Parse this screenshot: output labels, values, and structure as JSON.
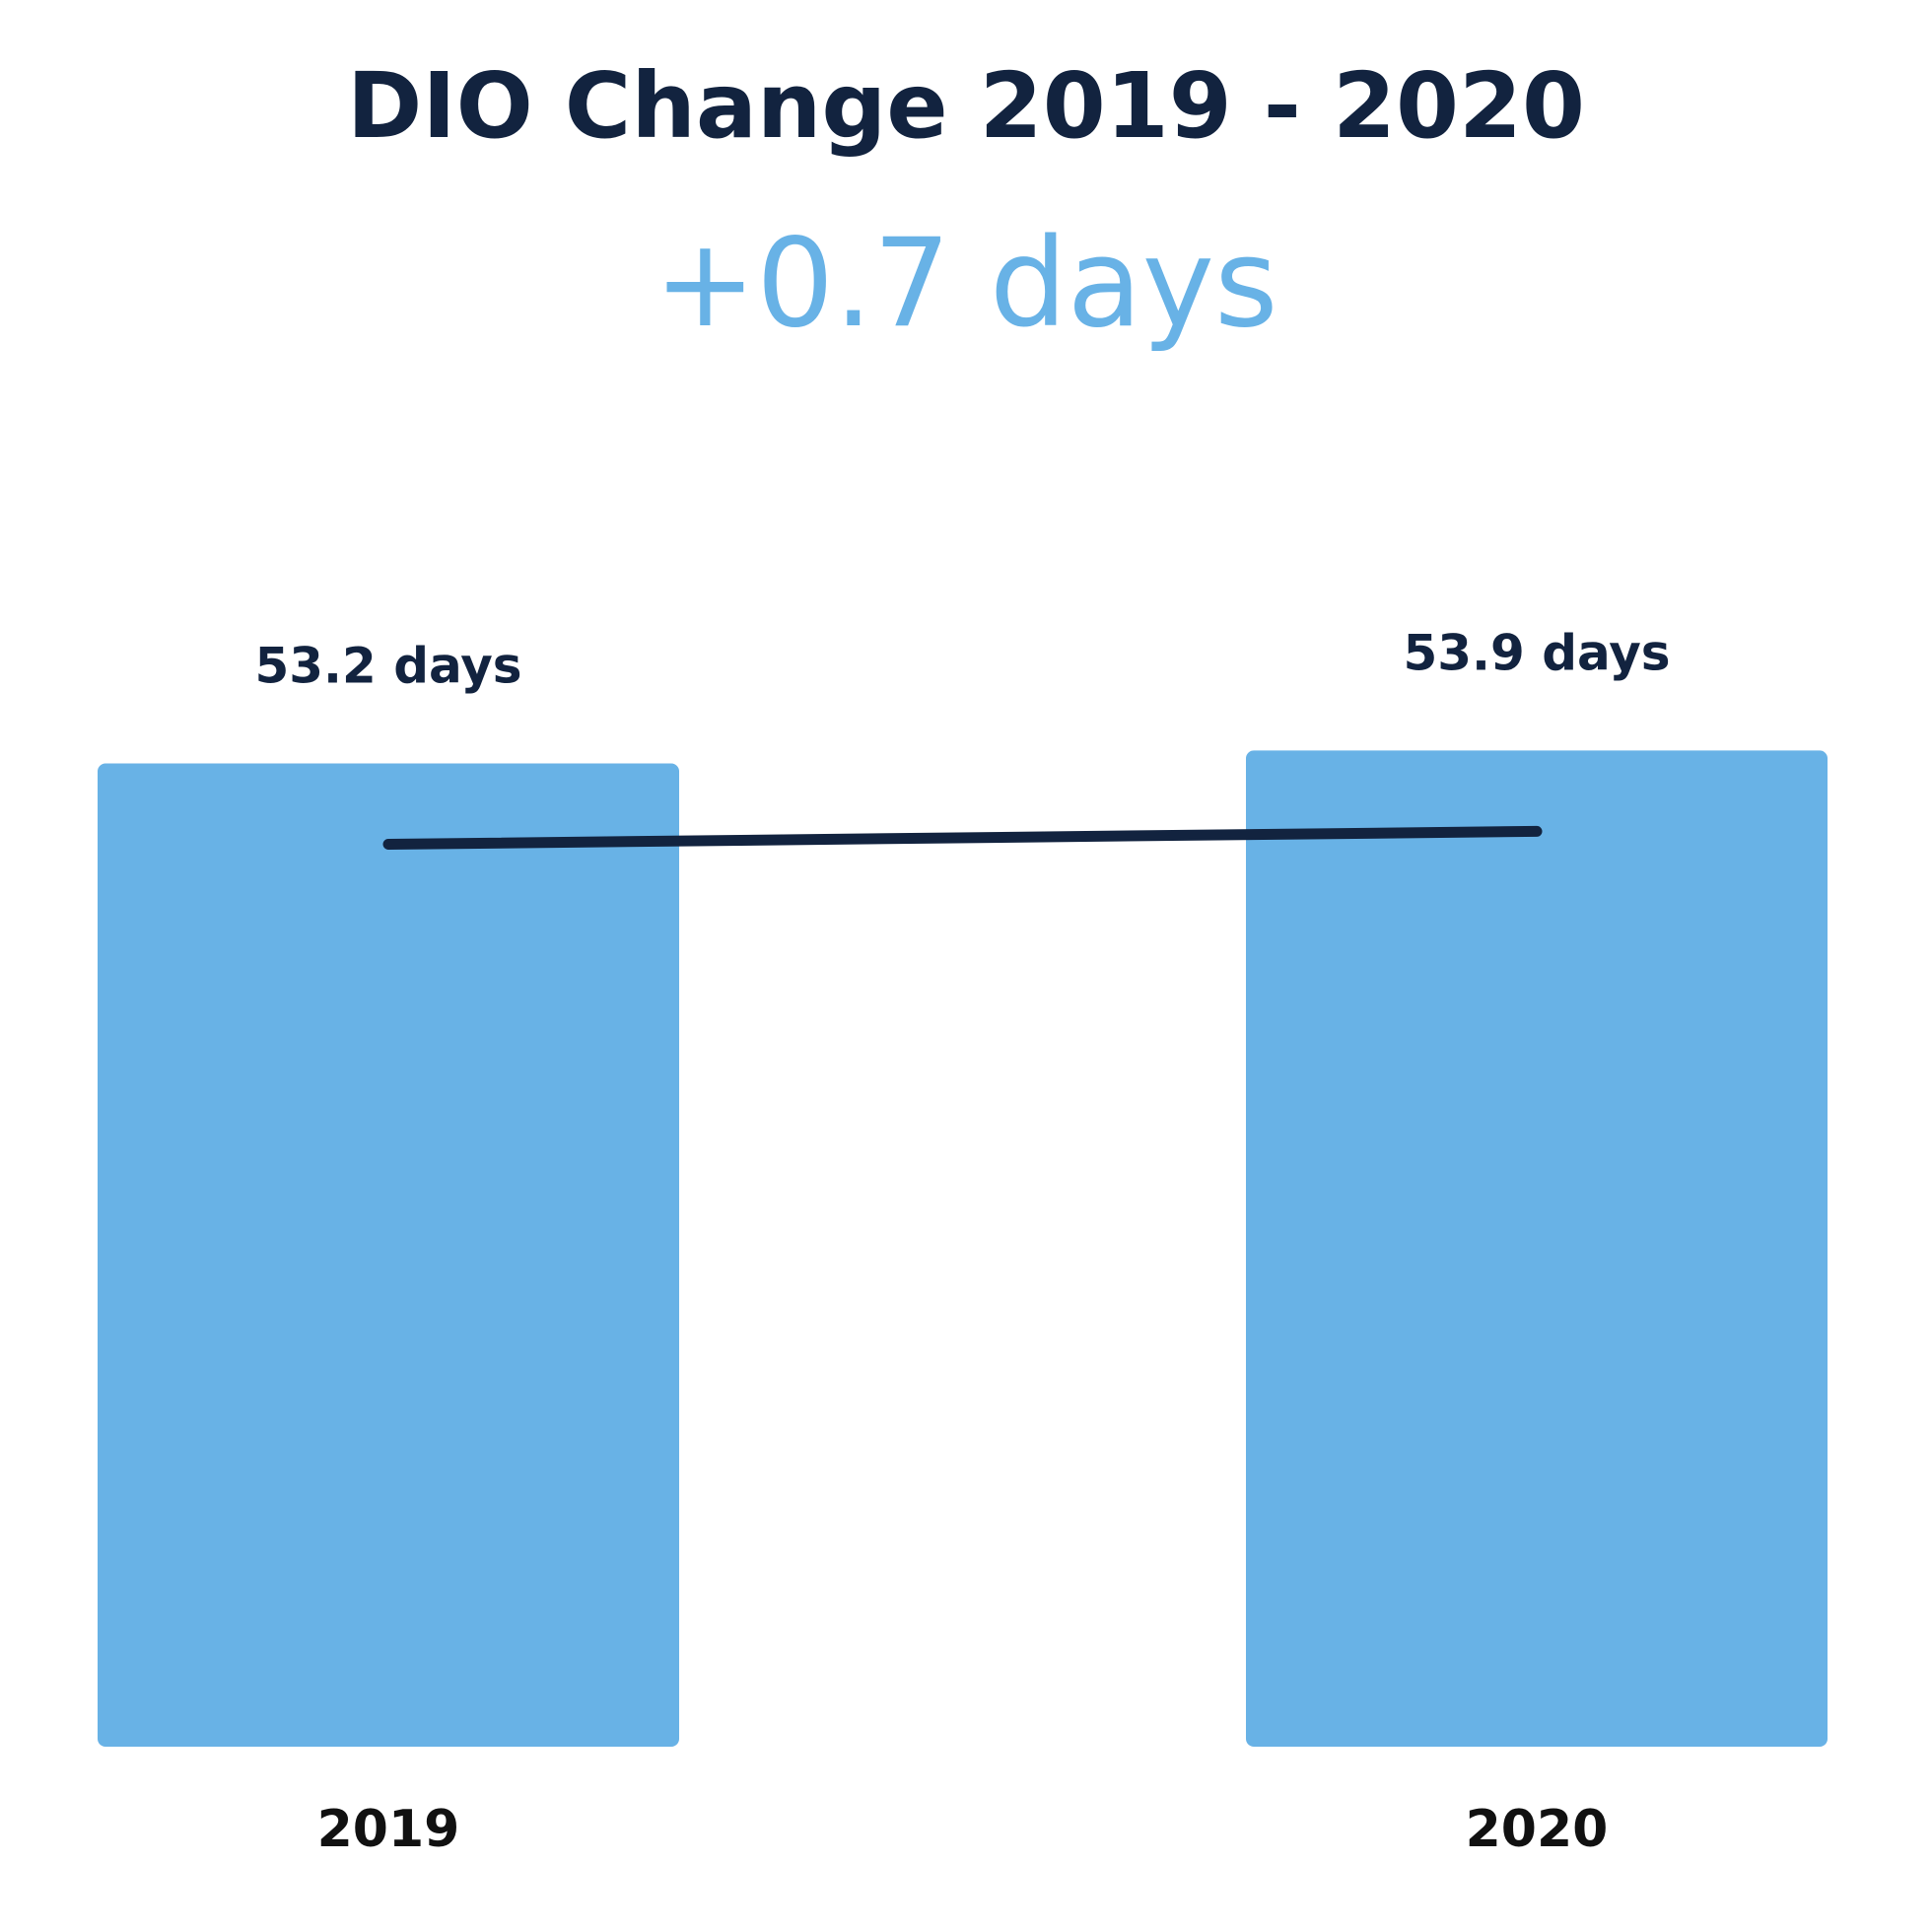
{
  "title": "DIO Change 2019 - 2020",
  "subtitle": "+0.7 days",
  "colors": {
    "bar": "#68b2e6",
    "line": "#12233f",
    "text": "#12233f",
    "subtitle": "#68b2e6"
  },
  "chart_data": {
    "type": "bar",
    "categories": [
      "2019",
      "2020"
    ],
    "values": [
      53.2,
      53.9
    ],
    "data_labels": [
      "53.2 days",
      "53.9 days"
    ],
    "overlay": {
      "type": "line",
      "values": [
        53.2,
        53.9
      ]
    },
    "xlabel": "",
    "ylabel": "",
    "ylim": [
      0,
      58
    ],
    "grid": false,
    "legend": "none"
  }
}
